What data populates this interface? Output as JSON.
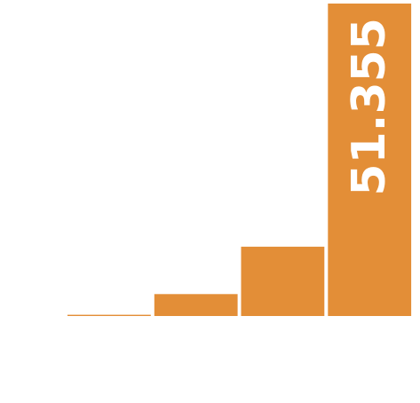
{
  "chart_data": {
    "type": "bar",
    "categories": [
      "",
      "",
      "",
      ""
    ],
    "values": [
      0.2,
      3.6,
      11.4,
      51.355
    ],
    "data_labels": [
      "",
      "",
      "",
      "51.355"
    ],
    "ylim": [
      0,
      51.355
    ],
    "bar_color": "#E38E37",
    "label_color": "#FFFFFF",
    "grid": false,
    "legend": "none",
    "title": "",
    "xlabel": "",
    "ylabel": ""
  }
}
